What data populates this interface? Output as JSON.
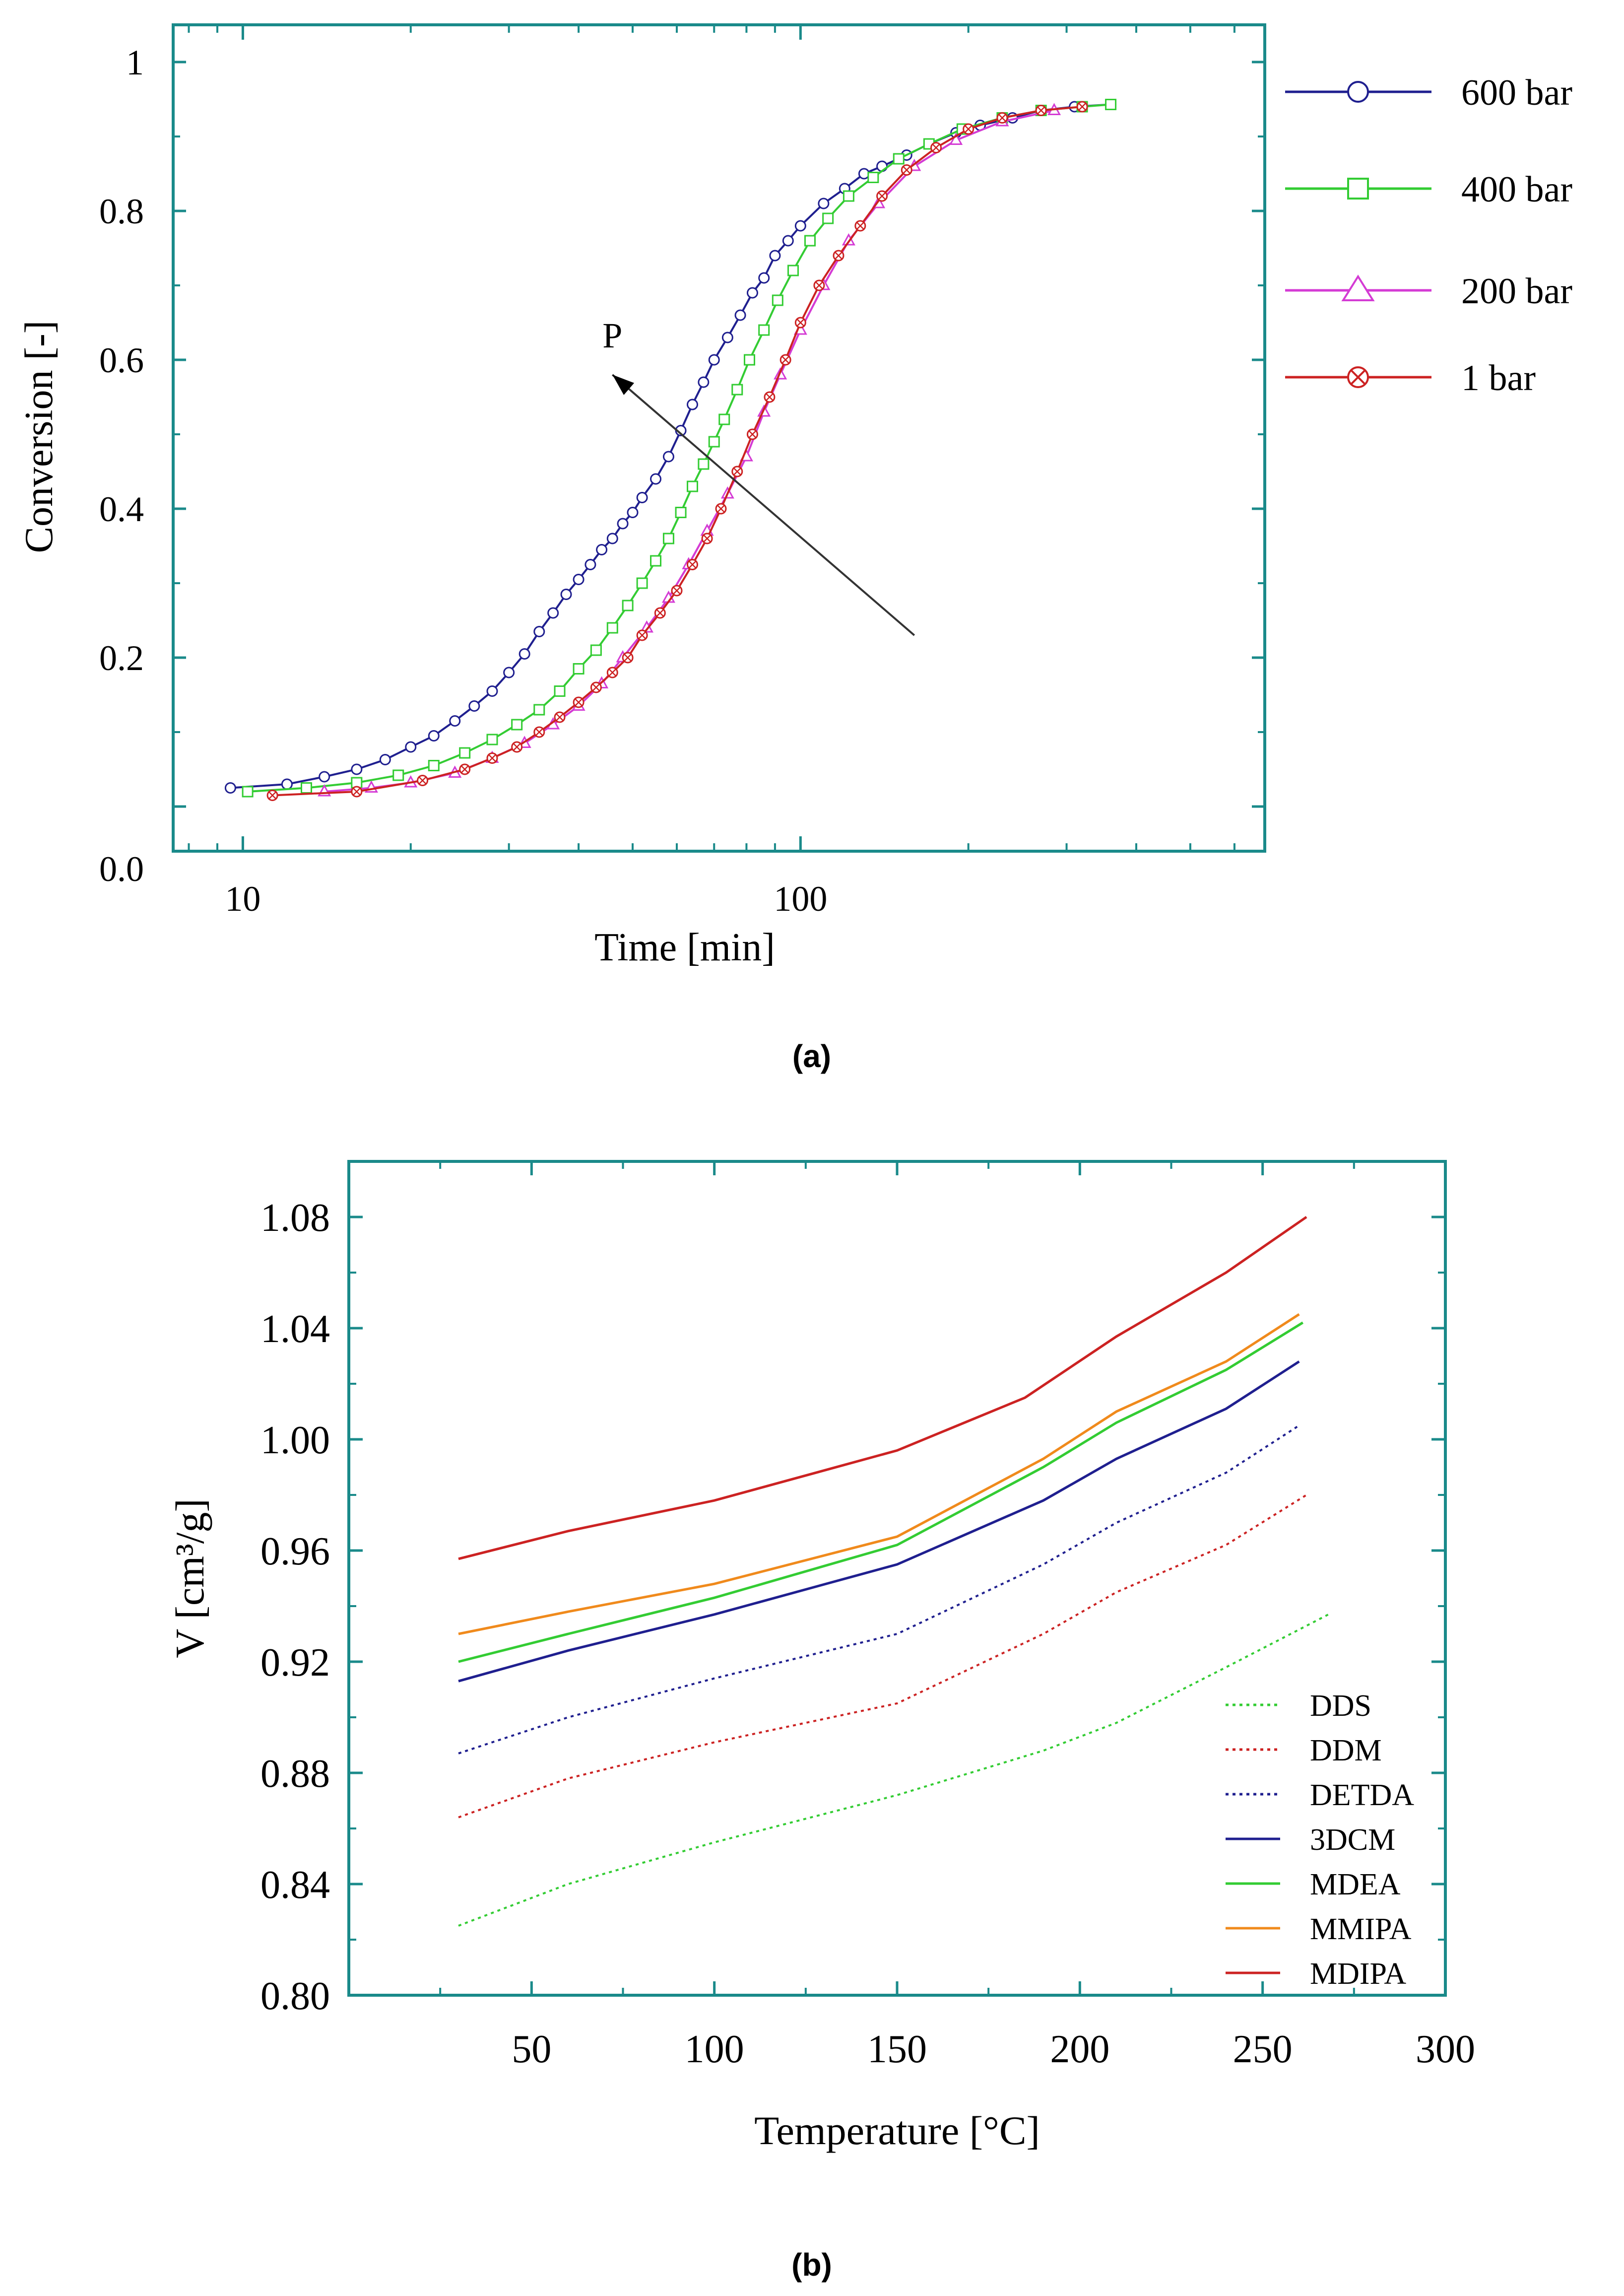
{
  "chart_data": [
    {
      "type": "line",
      "panel_caption": "(a)",
      "xlabel": "Time [min]",
      "ylabel": "Conversion [-]",
      "x_scale": "log",
      "xlim": [
        7.5,
        680
      ],
      "ylim": [
        -0.06,
        1.05
      ],
      "x_ticks": [
        {
          "v": 10,
          "label": "10"
        },
        {
          "v": 100,
          "label": "100"
        }
      ],
      "y_ticks": [
        {
          "v": 0.0,
          "label": "0.0"
        },
        {
          "v": 0.2,
          "label": "0.2"
        },
        {
          "v": 0.4,
          "label": "0.4"
        },
        {
          "v": 0.6,
          "label": "0.6"
        },
        {
          "v": 0.8,
          "label": "0.8"
        },
        {
          "v": 1.0,
          "label": "1"
        }
      ],
      "y_ticks_unlabeled": [
        0.0
      ],
      "grid": false,
      "legend_position": "right",
      "annotation": {
        "text": "P",
        "arrow_from": {
          "x": 160,
          "y": 0.23
        },
        "arrow_to": {
          "x": 46,
          "y": 0.58
        }
      },
      "series": [
        {
          "name": "600 bar",
          "color": "#1f1f8f",
          "marker": "circle",
          "x": [
            9.5,
            12,
            14,
            16,
            18,
            20,
            22,
            24,
            26,
            28,
            30,
            32,
            34,
            36,
            38,
            40,
            42,
            44,
            46,
            48,
            50,
            52,
            55,
            58,
            61,
            64,
            67,
            70,
            74,
            78,
            82,
            86,
            90,
            95,
            100,
            110,
            120,
            130,
            140,
            155,
            170,
            190,
            210,
            240,
            270,
            310,
            360
          ],
          "y": [
            0.025,
            0.03,
            0.04,
            0.05,
            0.063,
            0.08,
            0.095,
            0.115,
            0.135,
            0.155,
            0.18,
            0.205,
            0.235,
            0.26,
            0.285,
            0.305,
            0.325,
            0.345,
            0.36,
            0.38,
            0.395,
            0.415,
            0.44,
            0.47,
            0.505,
            0.54,
            0.57,
            0.6,
            0.63,
            0.66,
            0.69,
            0.71,
            0.74,
            0.76,
            0.78,
            0.81,
            0.83,
            0.85,
            0.86,
            0.875,
            0.89,
            0.905,
            0.915,
            0.925,
            0.935,
            0.94,
            0.943
          ]
        },
        {
          "name": "400 bar",
          "color": "#33cc33",
          "marker": "square",
          "x": [
            10.2,
            13,
            16,
            19,
            22,
            25,
            28,
            31,
            34,
            37,
            40,
            43,
            46,
            49,
            52,
            55,
            58,
            61,
            64,
            67,
            70,
            73,
            77,
            81,
            86,
            91,
            97,
            104,
            112,
            122,
            135,
            150,
            170,
            195,
            230,
            270,
            320,
            360
          ],
          "y": [
            0.02,
            0.025,
            0.032,
            0.042,
            0.055,
            0.072,
            0.09,
            0.11,
            0.13,
            0.155,
            0.185,
            0.21,
            0.24,
            0.27,
            0.3,
            0.33,
            0.36,
            0.395,
            0.43,
            0.46,
            0.49,
            0.52,
            0.56,
            0.6,
            0.64,
            0.68,
            0.72,
            0.76,
            0.79,
            0.82,
            0.845,
            0.87,
            0.89,
            0.91,
            0.925,
            0.935,
            0.94,
            0.943
          ]
        },
        {
          "name": "200 bar",
          "color": "#d43bd4",
          "marker": "triangle",
          "x": [
            14,
            17,
            20,
            24,
            28,
            32,
            36,
            40,
            44,
            48,
            53,
            58,
            63,
            68,
            74,
            80,
            86,
            92,
            100,
            110,
            122,
            138,
            160,
            190,
            230,
            285
          ],
          "y": [
            0.02,
            0.025,
            0.032,
            0.045,
            0.065,
            0.085,
            0.11,
            0.135,
            0.165,
            0.2,
            0.24,
            0.28,
            0.325,
            0.37,
            0.42,
            0.47,
            0.53,
            0.58,
            0.64,
            0.7,
            0.76,
            0.81,
            0.86,
            0.895,
            0.92,
            0.935
          ]
        },
        {
          "name": "1 bar",
          "color": "#cc2222",
          "marker": "circle-x",
          "x": [
            11.3,
            16,
            21,
            25,
            28,
            31,
            34,
            37,
            40,
            43,
            46,
            49,
            52,
            56,
            60,
            64,
            68,
            72,
            77,
            82,
            88,
            94,
            100,
            108,
            117,
            128,
            140,
            155,
            175,
            200,
            230,
            270,
            320
          ],
          "y": [
            0.015,
            0.02,
            0.035,
            0.05,
            0.065,
            0.08,
            0.1,
            0.12,
            0.14,
            0.16,
            0.18,
            0.2,
            0.23,
            0.26,
            0.29,
            0.325,
            0.36,
            0.4,
            0.45,
            0.5,
            0.55,
            0.6,
            0.65,
            0.7,
            0.74,
            0.78,
            0.82,
            0.855,
            0.885,
            0.91,
            0.925,
            0.935,
            0.94
          ]
        }
      ]
    },
    {
      "type": "line",
      "panel_caption": "(b)",
      "xlabel": "Temperature [°C]",
      "ylabel": "V [cm³/g]",
      "xlim": [
        0,
        300
      ],
      "ylim": [
        0.8,
        1.1
      ],
      "x_ticks": [
        {
          "v": 50,
          "label": "50"
        },
        {
          "v": 100,
          "label": "100"
        },
        {
          "v": 150,
          "label": "150"
        },
        {
          "v": 200,
          "label": "200"
        },
        {
          "v": 250,
          "label": "250"
        },
        {
          "v": 300,
          "label": "300"
        }
      ],
      "y_ticks": [
        {
          "v": 0.8,
          "label": "0.80"
        },
        {
          "v": 0.84,
          "label": "0.84"
        },
        {
          "v": 0.88,
          "label": "0.88"
        },
        {
          "v": 0.92,
          "label": "0.92"
        },
        {
          "v": 0.96,
          "label": "0.96"
        },
        {
          "v": 1.0,
          "label": "1.00"
        },
        {
          "v": 1.04,
          "label": "1.04"
        },
        {
          "v": 1.08,
          "label": "1.08"
        }
      ],
      "grid": false,
      "legend_position": "bottom-right",
      "series": [
        {
          "name": "DDS",
          "color": "#33cc33",
          "style": "dotted",
          "x": [
            30,
            60,
            100,
            150,
            190,
            210,
            240,
            268
          ],
          "y": [
            0.825,
            0.84,
            0.855,
            0.872,
            0.888,
            0.898,
            0.918,
            0.937
          ]
        },
        {
          "name": "DDM",
          "color": "#cc2222",
          "style": "dotted",
          "x": [
            30,
            60,
            100,
            150,
            190,
            210,
            240,
            262
          ],
          "y": [
            0.864,
            0.878,
            0.891,
            0.905,
            0.93,
            0.945,
            0.962,
            0.98
          ]
        },
        {
          "name": "DETDA",
          "color": "#1f1f8f",
          "style": "dotted",
          "x": [
            30,
            60,
            100,
            150,
            190,
            210,
            240,
            260
          ],
          "y": [
            0.887,
            0.9,
            0.914,
            0.93,
            0.955,
            0.97,
            0.988,
            1.005
          ]
        },
        {
          "name": "3DCM",
          "color": "#1f1f8f",
          "style": "solid",
          "x": [
            30,
            60,
            100,
            150,
            190,
            210,
            240,
            260
          ],
          "y": [
            0.913,
            0.924,
            0.937,
            0.955,
            0.978,
            0.993,
            1.011,
            1.028
          ]
        },
        {
          "name": "MDEA",
          "color": "#33cc33",
          "style": "solid",
          "x": [
            30,
            60,
            100,
            150,
            190,
            210,
            240,
            261
          ],
          "y": [
            0.92,
            0.93,
            0.943,
            0.962,
            0.99,
            1.006,
            1.025,
            1.042
          ]
        },
        {
          "name": "MMIPA",
          "color": "#f08a1c",
          "style": "solid",
          "x": [
            30,
            60,
            100,
            150,
            190,
            210,
            240,
            260
          ],
          "y": [
            0.93,
            0.938,
            0.948,
            0.965,
            0.993,
            1.01,
            1.028,
            1.045
          ]
        },
        {
          "name": "MDIPA",
          "color": "#cc2222",
          "style": "solid",
          "x": [
            30,
            60,
            100,
            150,
            185,
            210,
            240,
            262
          ],
          "y": [
            0.957,
            0.967,
            0.978,
            0.996,
            1.015,
            1.037,
            1.06,
            1.08
          ]
        }
      ]
    }
  ]
}
